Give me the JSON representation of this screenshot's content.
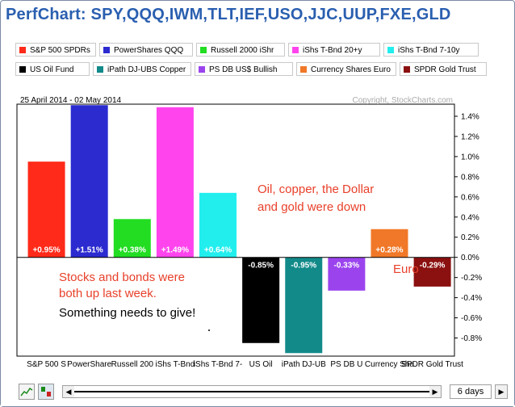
{
  "title": "PerfChart: SPY,QQQ,IWM,TLT,IEF,USO,JJC,UUP,FXE,GLD",
  "legend": [
    {
      "label": "S&P 500 SPDRs",
      "color": "#ff2a1a"
    },
    {
      "label": "PowerShares QQQ",
      "color": "#2b2bd0"
    },
    {
      "label": "Russell 2000 iShr",
      "color": "#22dd22"
    },
    {
      "label": "iShs T-Bnd 20+y",
      "color": "#ff44ee"
    },
    {
      "label": "iShs T-Bnd 7-10y",
      "color": "#22eeee"
    },
    {
      "label": "US Oil Fund",
      "color": "#000000"
    },
    {
      "label": "iPath DJ-UBS Copper",
      "color": "#138a8a"
    },
    {
      "label": "PS DB US$ Bullish",
      "color": "#9b44ee"
    },
    {
      "label": "Currency Shares Euro",
      "color": "#f07828"
    },
    {
      "label": "SPDR Gold Trust",
      "color": "#8b1010"
    }
  ],
  "date_range": "25 April 2014 - 02 May 2014",
  "copyright": "Copyright, StockCharts.com",
  "annotations": {
    "oil": "Oil, copper, the Dollar\nand gold were down",
    "stocks": "Stocks and bonds were\nboth up last week.",
    "give": "Something needs to give!",
    "euro": "Euro"
  },
  "period_select": "6 days",
  "chart_data": {
    "type": "bar",
    "categories": [
      "S&P 500 S",
      "PowerShare",
      "Russell 200",
      "iShs T-Bnd",
      "iShs T-Bnd 7-",
      "US Oil",
      "iPath DJ-UB",
      "PS DB U",
      "Currency Sha",
      "SPDR Gold Trust"
    ],
    "values": [
      0.95,
      1.51,
      0.38,
      1.49,
      0.64,
      -0.85,
      -0.95,
      -0.33,
      0.28,
      -0.29
    ],
    "data_labels": [
      "+0.95%",
      "+1.51%",
      "+0.38%",
      "+1.49%",
      "+0.64%",
      "-0.85%",
      "-0.95%",
      "-0.33%",
      "+0.28%",
      "-0.29%"
    ],
    "colors": [
      "#ff2a1a",
      "#2b2bd0",
      "#22dd22",
      "#ff44ee",
      "#22eeee",
      "#000000",
      "#138a8a",
      "#9b44ee",
      "#f07828",
      "#8b1010"
    ],
    "yticks": [
      1.4,
      1.2,
      1.0,
      0.8,
      0.6,
      0.4,
      0.2,
      0.0,
      -0.2,
      -0.4,
      -0.6,
      -0.8
    ],
    "ytick_labels": [
      "1.4%",
      "1.2%",
      "1.0%",
      "0.8%",
      "0.6%",
      "0.4%",
      "0.2%",
      "0.0%",
      "-0.2%",
      "-0.4%",
      "-0.6%",
      "-0.8%"
    ],
    "ylim": [
      -0.98,
      1.52
    ],
    "grid": false
  }
}
